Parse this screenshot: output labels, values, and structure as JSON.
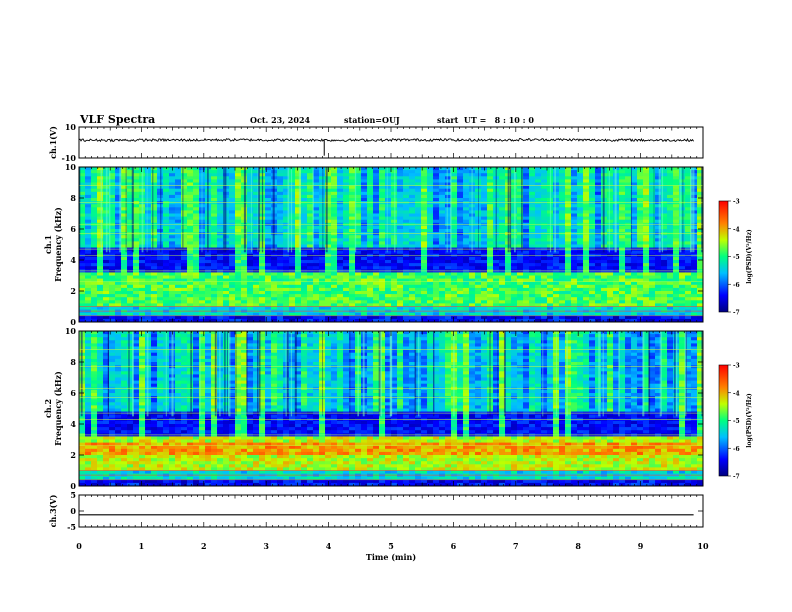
{
  "header": {
    "title": "VLF Spectra",
    "date": "Oct. 23, 2024",
    "station": "station=OUJ",
    "start": "start  UT =   8 : 10 : 0"
  },
  "chart_data": [
    {
      "type": "line",
      "panel": "ch1-waveform",
      "ylabel": "ch.1(V)",
      "ylim": [
        -10,
        10
      ],
      "y_ticks": [
        "10",
        "-10"
      ],
      "xlim": [
        0,
        10
      ],
      "series": [
        {
          "values": [
            1.5,
            1.6,
            1.7,
            1.6,
            1.5,
            1.7,
            1.6,
            1.8,
            1.6,
            1.5
          ]
        }
      ]
    },
    {
      "type": "heatmap",
      "panel": "ch1-spectrogram",
      "ylabel": "ch.1\nFrequency (kHz)",
      "ylim": [
        0,
        10
      ],
      "y_ticks": [
        "0",
        "2",
        "4",
        "6",
        "8",
        "10"
      ],
      "xlim": [
        0,
        10
      ],
      "colorbar": {
        "label": "log(PSD)(V²/Hz)",
        "range": [
          -7,
          -3
        ],
        "ticks": [
          "-3",
          "-4",
          "-5",
          "-6",
          "-7"
        ]
      }
    },
    {
      "type": "heatmap",
      "panel": "ch2-spectrogram",
      "ylabel": "ch.2\nFrequency (kHz)",
      "ylim": [
        0,
        10
      ],
      "y_ticks": [
        "0",
        "2",
        "4",
        "6",
        "8",
        "10"
      ],
      "xlim": [
        0,
        10
      ],
      "colorbar": {
        "label": "log(PSD)(V²/Hz)",
        "range": [
          -7,
          -3
        ],
        "ticks": [
          "-3",
          "-4",
          "-5",
          "-6",
          "-7"
        ]
      }
    },
    {
      "type": "line",
      "panel": "ch3-waveform",
      "ylabel": "ch.3(V)",
      "ylim": [
        -5,
        5
      ],
      "y_ticks": [
        "5",
        "0",
        "-5"
      ],
      "xlim": [
        0,
        10
      ],
      "x_ticks": [
        "0",
        "1",
        "2",
        "3",
        "4",
        "5",
        "6",
        "7",
        "8",
        "9",
        "10"
      ],
      "xlabel": "Time (min)",
      "series": [
        {
          "values": [
            -1.2,
            -1.2,
            -1.2,
            -1.2,
            -1.2,
            -1.2,
            -1.2,
            -1.2,
            -1.2,
            -1.2
          ]
        }
      ]
    }
  ]
}
